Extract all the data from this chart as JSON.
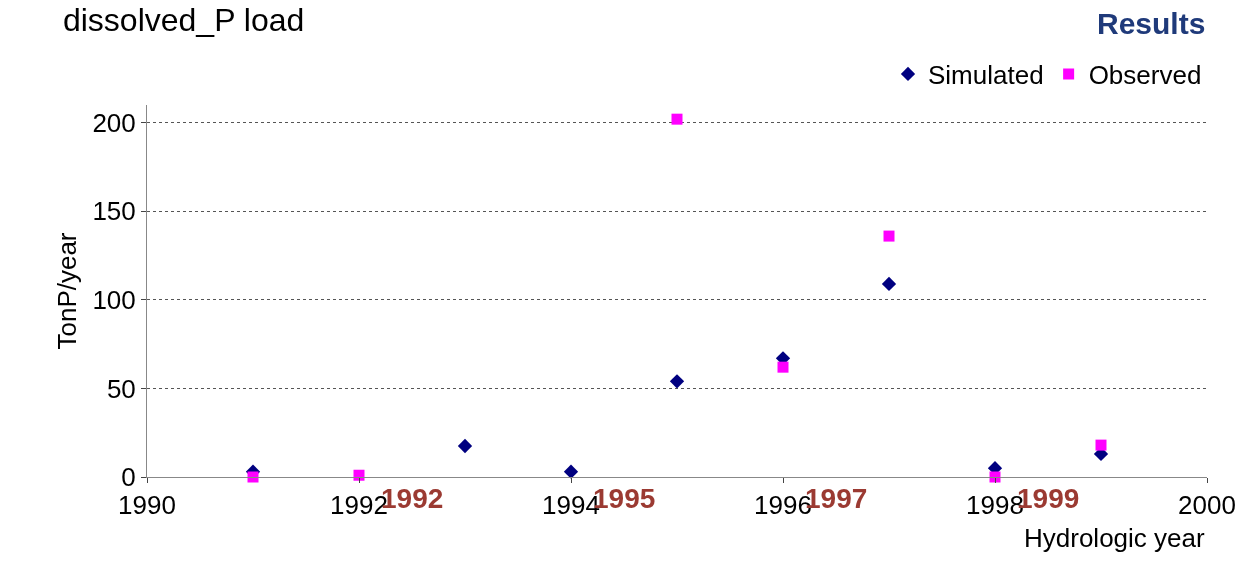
{
  "chart_data": {
    "type": "scatter",
    "title": "dissolved_P load",
    "ylabel": "TonP/year",
    "xlabel": "Hydrologic year",
    "x": [
      1991,
      1992,
      1993,
      1994,
      1995,
      1996,
      1997,
      1998,
      1999
    ],
    "series": [
      {
        "name": "Simulated",
        "color": "#000080",
        "marker": "diamond",
        "values": [
          3,
          null,
          17.5,
          3,
          54,
          67,
          109,
          5,
          13
        ]
      },
      {
        "name": "Observed",
        "color": "#ff00ff",
        "marker": "square",
        "values": [
          0,
          1,
          null,
          null,
          202,
          62,
          136,
          0,
          18
        ]
      }
    ],
    "xlim": [
      1990,
      2000
    ],
    "xticks": [
      1990,
      1992,
      1994,
      1996,
      1998,
      2000
    ],
    "ylim": [
      0,
      210
    ],
    "yticks": [
      0,
      50,
      100,
      150,
      200
    ],
    "grid": "y",
    "legend": "top right",
    "annotations": [
      "1992",
      "1995",
      "1997",
      "1999",
      "Results"
    ]
  }
}
